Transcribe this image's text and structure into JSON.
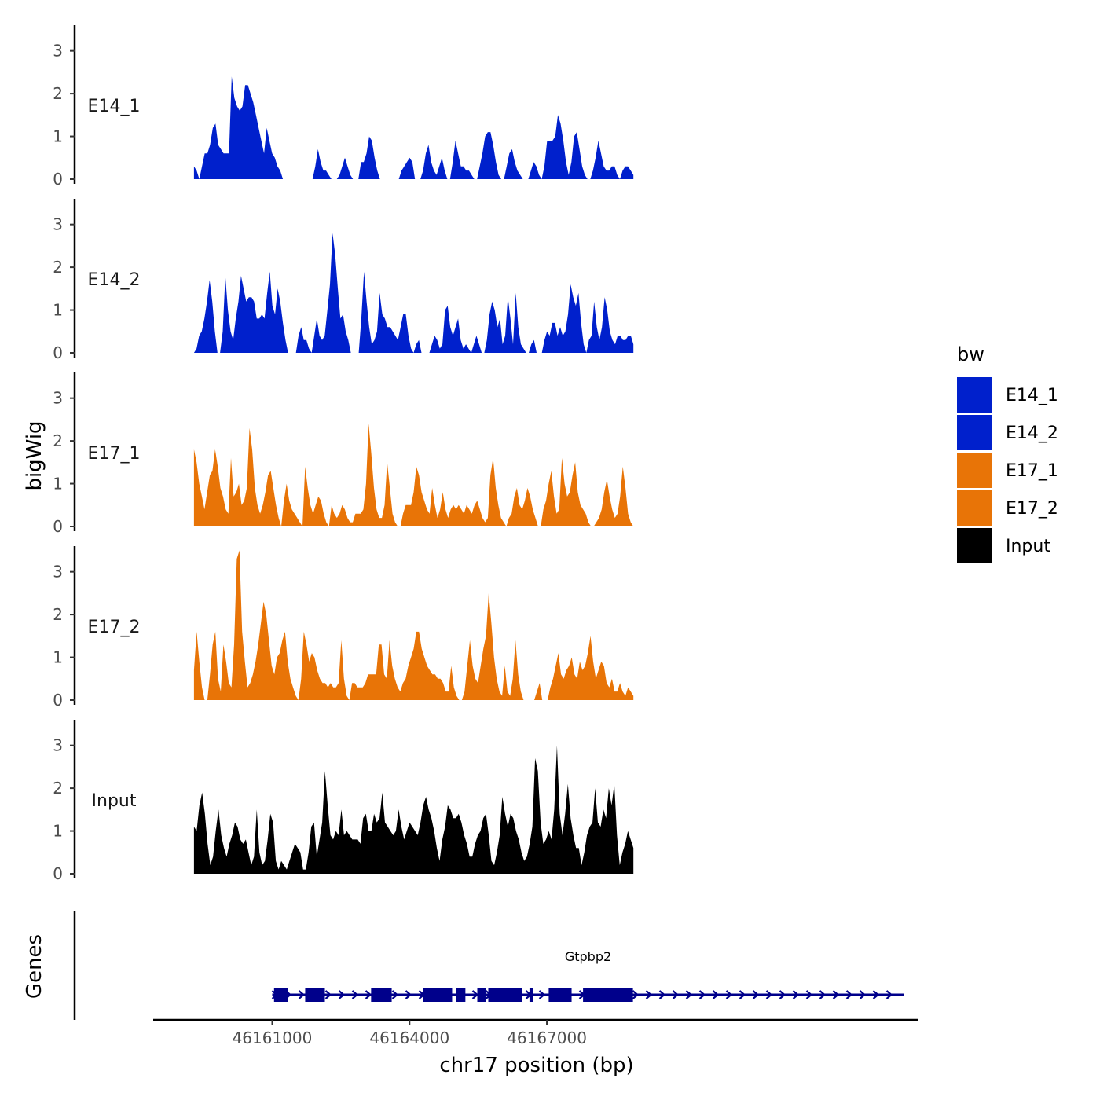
{
  "chart_data": {
    "type": "area",
    "ylabel": "bigWig",
    "xlabel": "chr17 position (bp)",
    "genes_label": "Genes",
    "x_range": [
      46158400,
      46175100
    ],
    "x_ticks": [
      46161000,
      46164000,
      46167000
    ],
    "x_tick_labels": [
      "46161000",
      "46164000",
      "46167000"
    ],
    "y_ticks": [
      0,
      1,
      2,
      3
    ],
    "y_tick_labels": [
      "0",
      "1",
      "2",
      "3"
    ],
    "ylim": [
      0,
      3.6
    ],
    "series": [
      {
        "name": "E14_1",
        "color": "#0020CC",
        "x_start": 46159290,
        "x_end": 46168890,
        "values": [
          0.3,
          0.2,
          0.0,
          0.3,
          0.6,
          0.6,
          0.8,
          1.2,
          1.3,
          0.8,
          0.7,
          0.6,
          0.6,
          0.6,
          2.4,
          1.9,
          1.7,
          1.6,
          1.7,
          2.2,
          2.2,
          2.0,
          1.8,
          1.5,
          1.2,
          0.9,
          0.6,
          1.2,
          0.9,
          0.6,
          0.5,
          0.3,
          0.2,
          0,
          0,
          0,
          0,
          0,
          0,
          0,
          0,
          0,
          0,
          0,
          0,
          0.3,
          0.7,
          0.4,
          0.2,
          0.2,
          0.1,
          0,
          0,
          0,
          0.1,
          0.3,
          0.5,
          0.3,
          0.1,
          0,
          0,
          0.0,
          0.4,
          0.4,
          0.6,
          1.0,
          0.9,
          0.5,
          0.2,
          0,
          0,
          0,
          0,
          0,
          0,
          0,
          0.0,
          0.2,
          0.3,
          0.4,
          0.5,
          0.4,
          0.0,
          0,
          0,
          0.2,
          0.6,
          0.8,
          0.4,
          0.2,
          0.1,
          0.3,
          0.5,
          0.2,
          0,
          0,
          0.4,
          0.9,
          0.6,
          0.3,
          0.3,
          0.2,
          0.2,
          0.1,
          0,
          0,
          0.3,
          0.6,
          1.0,
          1.1,
          1.1,
          0.8,
          0.4,
          0.1,
          0,
          0,
          0.3,
          0.6,
          0.7,
          0.4,
          0.2,
          0.1,
          0,
          0,
          0,
          0.2,
          0.4,
          0.3,
          0.1,
          0,
          0.3,
          0.9,
          0.9,
          0.9,
          1.0,
          1.5,
          1.3,
          0.9,
          0.4,
          0.1,
          0.4,
          1.0,
          1.1,
          0.7,
          0.3,
          0.1,
          0,
          0,
          0.2,
          0.5,
          0.9,
          0.6,
          0.3,
          0.2,
          0.2,
          0.3,
          0.3,
          0.1,
          0,
          0.2,
          0.3,
          0.3,
          0.2,
          0.1
        ]
      },
      {
        "name": "E14_2",
        "color": "#0020CC",
        "x_start": 46159290,
        "x_end": 46168890,
        "values": [
          0.0,
          0.1,
          0.4,
          0.5,
          0.8,
          1.2,
          1.7,
          1.2,
          0.5,
          0.0,
          0,
          0.5,
          1.8,
          1.0,
          0.5,
          0.3,
          0.8,
          1.2,
          1.8,
          1.5,
          1.2,
          1.3,
          1.3,
          1.2,
          0.8,
          0.8,
          0.9,
          0.8,
          1.4,
          1.9,
          1.1,
          0.9,
          1.5,
          1.2,
          0.7,
          0.3,
          0.0,
          0,
          0,
          0.0,
          0.4,
          0.6,
          0.3,
          0.3,
          0.1,
          0,
          0.4,
          0.8,
          0.4,
          0.3,
          0.4,
          1.0,
          1.6,
          2.8,
          2.3,
          1.5,
          0.8,
          0.9,
          0.5,
          0.3,
          0.0,
          0,
          0,
          0.0,
          0.8,
          1.9,
          1.2,
          0.6,
          0.2,
          0.3,
          0.5,
          1.4,
          0.9,
          0.8,
          0.6,
          0.6,
          0.5,
          0.4,
          0.3,
          0.6,
          0.9,
          0.9,
          0.4,
          0.1,
          0.0,
          0.2,
          0.3,
          0.0,
          0,
          0,
          0.0,
          0.2,
          0.4,
          0.3,
          0.1,
          0.2,
          1.0,
          1.1,
          0.6,
          0.4,
          0.6,
          0.8,
          0.3,
          0.1,
          0.2,
          0.1,
          0.0,
          0.2,
          0.4,
          0.2,
          0.0,
          0,
          0.3,
          0.9,
          1.2,
          1.0,
          0.6,
          0.8,
          0.2,
          0.4,
          1.3,
          0.8,
          0.2,
          1.4,
          0.6,
          0.2,
          0.1,
          0,
          0,
          0.2,
          0.3,
          0.0,
          0,
          0,
          0.3,
          0.5,
          0.4,
          0.7,
          0.7,
          0.4,
          0.6,
          0.4,
          0.5,
          0.9,
          1.6,
          1.3,
          1.1,
          1.4,
          0.7,
          0.2,
          0.0,
          0.3,
          0.4,
          1.2,
          0.6,
          0.3,
          0.6,
          1.3,
          1.0,
          0.5,
          0.3,
          0.2,
          0.4,
          0.4,
          0.3,
          0.3,
          0.4,
          0.4,
          0.2
        ]
      },
      {
        "name": "E17_1",
        "color": "#E87407",
        "x_start": 46159290,
        "x_end": 46168890,
        "values": [
          1.8,
          1.5,
          1.0,
          0.7,
          0.4,
          0.8,
          1.2,
          1.3,
          1.8,
          1.4,
          0.9,
          0.7,
          0.4,
          0.3,
          1.6,
          0.7,
          0.8,
          1.0,
          0.5,
          0.6,
          0.9,
          2.3,
          1.8,
          0.9,
          0.5,
          0.3,
          0.5,
          0.8,
          1.2,
          1.3,
          0.9,
          0.5,
          0.2,
          0.0,
          0.6,
          1.0,
          0.6,
          0.4,
          0.3,
          0.2,
          0.1,
          0,
          1.4,
          0.9,
          0.5,
          0.3,
          0.5,
          0.7,
          0.6,
          0.3,
          0.1,
          0,
          0.5,
          0.3,
          0.2,
          0.3,
          0.5,
          0.4,
          0.2,
          0.1,
          0.1,
          0.3,
          0.3,
          0.3,
          0.4,
          1.0,
          2.4,
          1.7,
          0.9,
          0.4,
          0.2,
          0.2,
          0.5,
          1.5,
          0.9,
          0.3,
          0.1,
          0,
          0,
          0.3,
          0.5,
          0.5,
          0.5,
          0.8,
          1.4,
          1.2,
          0.8,
          0.6,
          0.4,
          0.3,
          0.9,
          0.5,
          0.2,
          0.4,
          0.8,
          0.4,
          0.2,
          0.4,
          0.5,
          0.4,
          0.5,
          0.4,
          0.3,
          0.5,
          0.4,
          0.3,
          0.5,
          0.6,
          0.4,
          0.2,
          0.1,
          0.2,
          1.2,
          1.6,
          0.9,
          0.5,
          0.2,
          0.1,
          0,
          0.2,
          0.3,
          0.7,
          0.9,
          0.5,
          0.4,
          0.6,
          0.9,
          0.7,
          0.4,
          0.2,
          0,
          0,
          0.4,
          0.6,
          1.0,
          1.3,
          0.7,
          0.3,
          0.4,
          1.6,
          1.0,
          0.7,
          0.8,
          1.2,
          1.5,
          0.8,
          0.5,
          0.4,
          0.3,
          0.1,
          0,
          0,
          0.1,
          0.2,
          0.4,
          0.8,
          1.1,
          0.7,
          0.4,
          0.2,
          0.3,
          0.7,
          1.4,
          0.9,
          0.3,
          0.1,
          0
        ]
      },
      {
        "name": "E17_2",
        "color": "#E87407",
        "x_start": 46159290,
        "x_end": 46168890,
        "values": [
          0.7,
          1.6,
          0.9,
          0.3,
          0.0,
          0,
          0.6,
          1.3,
          1.6,
          0.5,
          0.2,
          1.3,
          0.9,
          0.4,
          0.3,
          1.3,
          3.3,
          3.5,
          1.6,
          0.9,
          0.3,
          0.4,
          0.6,
          0.9,
          1.3,
          1.8,
          2.3,
          2.0,
          1.4,
          0.8,
          0.6,
          1.0,
          1.1,
          1.4,
          1.6,
          0.9,
          0.5,
          0.3,
          0.1,
          0.0,
          0.5,
          1.6,
          1.3,
          0.9,
          1.1,
          1.0,
          0.7,
          0.5,
          0.4,
          0.4,
          0.3,
          0.4,
          0.3,
          0.3,
          0.4,
          1.4,
          0.5,
          0.1,
          0.0,
          0.4,
          0.4,
          0.3,
          0.3,
          0.3,
          0.4,
          0.6,
          0.6,
          0.6,
          0.6,
          1.3,
          1.3,
          0.6,
          0.5,
          1.4,
          0.8,
          0.5,
          0.3,
          0.2,
          0.4,
          0.5,
          0.8,
          1.0,
          1.2,
          1.6,
          1.6,
          1.2,
          1.0,
          0.8,
          0.7,
          0.6,
          0.6,
          0.5,
          0.5,
          0.4,
          0.2,
          0.2,
          0.8,
          0.3,
          0.1,
          0.0,
          0,
          0.2,
          0.8,
          1.4,
          0.8,
          0.5,
          0.4,
          0.8,
          1.2,
          1.5,
          2.5,
          1.8,
          1.0,
          0.5,
          0.2,
          0.1,
          0.8,
          0.2,
          0.1,
          0.5,
          1.4,
          0.6,
          0.2,
          0,
          0,
          0,
          0,
          0.0,
          0.2,
          0.4,
          0.0,
          0,
          0,
          0.3,
          0.5,
          0.8,
          1.1,
          0.6,
          0.5,
          0.7,
          0.8,
          1.0,
          0.6,
          0.5,
          0.9,
          0.7,
          0.8,
          1.1,
          1.5,
          0.9,
          0.5,
          0.7,
          0.9,
          0.8,
          0.4,
          0.3,
          0.5,
          0.2,
          0.2,
          0.4,
          0.2,
          0.1,
          0.3,
          0.2,
          0.1
        ]
      },
      {
        "name": "Input",
        "color": "#000000",
        "x_start": 46159290,
        "x_end": 46168890,
        "values": [
          1.1,
          1.0,
          1.6,
          1.9,
          1.4,
          0.7,
          0.2,
          0.4,
          1.0,
          1.5,
          0.9,
          0.6,
          0.4,
          0.7,
          0.9,
          1.2,
          1.1,
          0.8,
          0.7,
          0.8,
          0.5,
          0.2,
          0.4,
          1.5,
          0.5,
          0.2,
          0.3,
          0.8,
          1.4,
          1.2,
          0.3,
          0.1,
          0.3,
          0.2,
          0.1,
          0.3,
          0.5,
          0.7,
          0.6,
          0.5,
          0.1,
          0.1,
          0.5,
          1.1,
          1.2,
          0.4,
          0.8,
          1.2,
          2.4,
          1.6,
          0.9,
          0.8,
          1.0,
          0.9,
          1.5,
          0.9,
          1.0,
          0.9,
          0.8,
          0.8,
          0.8,
          0.7,
          1.3,
          1.4,
          1.0,
          1.0,
          1.4,
          1.2,
          1.3,
          1.9,
          1.2,
          1.1,
          1.0,
          0.9,
          1.0,
          1.5,
          1.1,
          0.8,
          1.0,
          1.2,
          1.1,
          1.0,
          0.9,
          1.2,
          1.6,
          1.8,
          1.5,
          1.3,
          1.0,
          0.6,
          0.3,
          0.8,
          1.1,
          1.6,
          1.5,
          1.3,
          1.3,
          1.4,
          1.2,
          0.9,
          0.7,
          0.4,
          0.4,
          0.7,
          0.9,
          1.0,
          1.3,
          1.4,
          0.9,
          0.3,
          0.2,
          0.5,
          0.9,
          1.8,
          1.4,
          1.1,
          1.4,
          1.3,
          1.0,
          0.8,
          0.5,
          0.3,
          0.4,
          0.7,
          1.1,
          2.7,
          2.4,
          1.2,
          0.7,
          0.8,
          1.0,
          0.8,
          1.5,
          3.0,
          1.4,
          0.9,
          1.4,
          2.1,
          1.3,
          0.9,
          0.6,
          0.6,
          0.2,
          0.5,
          0.9,
          1.1,
          1.2,
          2.0,
          1.2,
          1.1,
          1.5,
          1.3,
          2.0,
          1.6,
          2.1,
          0.9,
          0.2,
          0.5,
          0.7,
          1.0,
          0.8,
          0.6
        ]
      }
    ],
    "genes": [
      {
        "name": "Gtpbp2",
        "start": 46161000,
        "end": 46174800,
        "strand": "+",
        "color": "#00008B",
        "exons": [
          [
            46161040,
            46161340
          ],
          [
            46161720,
            46162150
          ],
          [
            46163160,
            46163610
          ],
          [
            46164290,
            46164930
          ],
          [
            46165020,
            46165220
          ],
          [
            46165480,
            46165660
          ],
          [
            46165720,
            46166450
          ],
          [
            46166620,
            46166690
          ],
          [
            46167040,
            46167540
          ],
          [
            46167790,
            46168880
          ]
        ]
      }
    ],
    "legend": {
      "title": "bw",
      "entries": [
        {
          "label": "E14_1",
          "color": "#0020CC"
        },
        {
          "label": "E14_2",
          "color": "#0020CC"
        },
        {
          "label": "E17_1",
          "color": "#E87407"
        },
        {
          "label": "E17_2",
          "color": "#E87407"
        },
        {
          "label": "Input",
          "color": "#000000"
        }
      ]
    }
  }
}
